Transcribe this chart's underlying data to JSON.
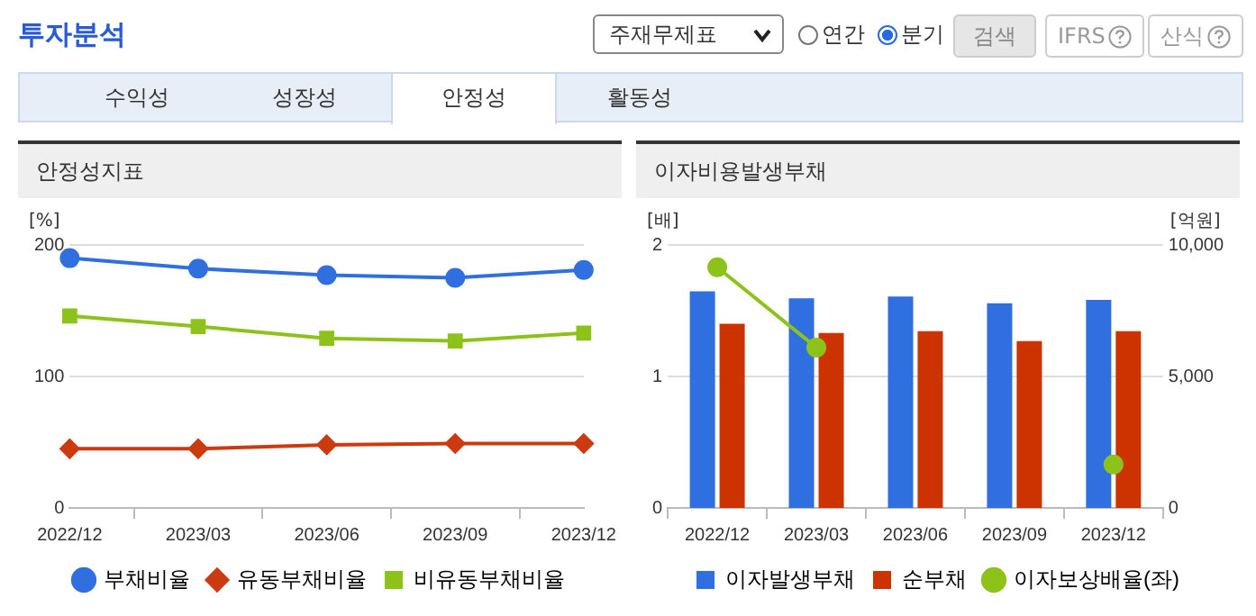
{
  "chart_data": [
    {
      "type": "other",
      "title": "투자분석",
      "annotations": [
        "주재무제표",
        "연간",
        "분기",
        "검색",
        "IFRS",
        "산식",
        "수익성",
        "성장성",
        "안정성",
        "활동성"
      ]
    },
    {
      "type": "line",
      "title": "안정성지표",
      "ylabel": "[%]",
      "categories": [
        "2022/12",
        "2023/03",
        "2023/06",
        "2023/09",
        "2023/12"
      ],
      "ylim": [
        0,
        200
      ],
      "yticks": [
        0,
        100,
        200
      ],
      "grid": "y",
      "legend": "bottom",
      "series": [
        {
          "name": "부채비율",
          "color": "#2f6fe0",
          "marker": "circle",
          "values": [
            190,
            182,
            177,
            175,
            181
          ]
        },
        {
          "name": "유동부채비율",
          "color": "#cc3a10",
          "marker": "diamond",
          "values": [
            45,
            45,
            48,
            49,
            49
          ]
        },
        {
          "name": "비유동부채비율",
          "color": "#8cc21a",
          "marker": "square",
          "values": [
            146,
            138,
            129,
            127,
            133
          ]
        }
      ]
    },
    {
      "type": "bar",
      "title": "이자비용발생부채",
      "ylabel": "[배]",
      "y2label": "[억원]",
      "categories": [
        "2022/12",
        "2023/03",
        "2023/06",
        "2023/09",
        "2023/12"
      ],
      "ylim": [
        0,
        2
      ],
      "yticks": [
        0,
        1,
        2
      ],
      "y2lim": [
        0,
        10000
      ],
      "y2ticks": [
        0,
        {
          "value": 5000,
          "label": "5,000"
        },
        {
          "value": 10000,
          "label": "10,000"
        }
      ],
      "grid": "y",
      "legend": "bottom",
      "series": [
        {
          "name": "이자발생부채",
          "color": "#2f6fe0",
          "axis": "y2",
          "values": [
            8240,
            7970,
            8040,
            7780,
            7910
          ]
        },
        {
          "name": "순부채",
          "color": "#cc3300",
          "axis": "y2",
          "values": [
            7000,
            6650,
            6720,
            6340,
            6720
          ]
        },
        {
          "name": "이자보상배율(좌)",
          "color": "#8cc21a",
          "type": "line",
          "marker": "circle",
          "axis": "y",
          "values": [
            1.83,
            1.22,
            null,
            null,
            0.33
          ]
        }
      ]
    }
  ]
}
